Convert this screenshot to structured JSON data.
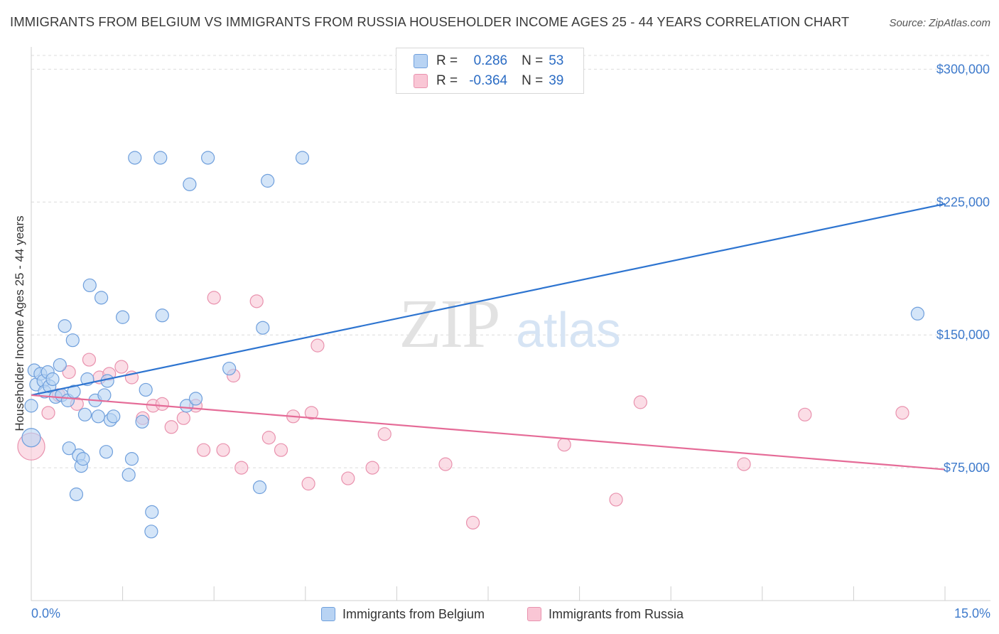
{
  "title": "IMMIGRANTS FROM BELGIUM VS IMMIGRANTS FROM RUSSIA HOUSEHOLDER INCOME AGES 25 - 44 YEARS CORRELATION CHART",
  "source": "Source: ZipAtlas.com",
  "watermark": {
    "zip": "ZIP",
    "atlas": "atlas"
  },
  "legend": {
    "r_label": "R =",
    "n_label": "N =",
    "belgium": {
      "r": "0.286",
      "n": "53"
    },
    "russia": {
      "r": "-0.364",
      "n": "39"
    }
  },
  "colors": {
    "belgium_fill": "#b8d3f3",
    "belgium_stroke": "#6f9fdc",
    "belgium_line": "#2d74d0",
    "russia_fill": "#f9c6d5",
    "russia_stroke": "#e992ae",
    "russia_line": "#e56b97",
    "tick_label": "#3f7bcc",
    "grid": "#dcdcdc"
  },
  "chart_data": {
    "type": "scatter",
    "title": "IMMIGRANTS FROM BELGIUM VS IMMIGRANTS FROM RUSSIA HOUSEHOLDER INCOME AGES 25 - 44 YEARS CORRELATION CHART",
    "xlabel": "",
    "ylabel": "Householder Income Ages 25 - 44 years",
    "xlim": [
      0,
      15
    ],
    "ylim": [
      0,
      315000
    ],
    "x_tick_labels": [
      "0.0%",
      "15.0%"
    ],
    "y_ticks": [
      75000,
      150000,
      225000,
      300000
    ],
    "y_tick_labels": [
      "$75,000",
      "$150,000",
      "$225,000",
      "$300,000"
    ],
    "grid": "horizontal dashed",
    "legend_placement": "top-center",
    "series": [
      {
        "name": "Immigrants from Belgium",
        "r": 0.286,
        "n": 53,
        "trend": {
          "x": [
            0,
            15
          ],
          "y": [
            116000,
            224000
          ]
        },
        "points": [
          [
            0.0,
            110000
          ],
          [
            0.05,
            130000
          ],
          [
            0.08,
            122000
          ],
          [
            0.15,
            128000
          ],
          [
            0.2,
            124000
          ],
          [
            0.22,
            118000
          ],
          [
            0.27,
            129000
          ],
          [
            0.3,
            121000
          ],
          [
            0.4,
            115000
          ],
          [
            0.47,
            133000
          ],
          [
            0.5,
            116000
          ],
          [
            0.55,
            155000
          ],
          [
            0.6,
            113000
          ],
          [
            0.62,
            86000
          ],
          [
            0.68,
            147000
          ],
          [
            0.7,
            118000
          ],
          [
            0.74,
            60000
          ],
          [
            0.78,
            82000
          ],
          [
            0.82,
            76000
          ],
          [
            0.85,
            80000
          ],
          [
            0.88,
            105000
          ],
          [
            0.92,
            125000
          ],
          [
            0.96,
            178000
          ],
          [
            1.05,
            113000
          ],
          [
            1.1,
            104000
          ],
          [
            1.15,
            171000
          ],
          [
            1.2,
            116000
          ],
          [
            1.23,
            84000
          ],
          [
            1.25,
            124000
          ],
          [
            1.3,
            102000
          ],
          [
            1.35,
            104000
          ],
          [
            1.5,
            160000
          ],
          [
            1.6,
            71000
          ],
          [
            1.65,
            80000
          ],
          [
            1.7,
            250000
          ],
          [
            1.82,
            101000
          ],
          [
            1.88,
            119000
          ],
          [
            1.97,
            39000
          ],
          [
            1.98,
            50000
          ],
          [
            2.12,
            250000
          ],
          [
            2.15,
            161000
          ],
          [
            2.55,
            110000
          ],
          [
            2.6,
            235000
          ],
          [
            2.7,
            114000
          ],
          [
            2.9,
            250000
          ],
          [
            3.25,
            131000
          ],
          [
            3.8,
            154000
          ],
          [
            3.75,
            64000
          ],
          [
            3.88,
            237000
          ],
          [
            4.45,
            250000
          ],
          [
            14.55,
            162000
          ],
          [
            0.0,
            92000
          ],
          [
            0.35,
            125000
          ]
        ]
      },
      {
        "name": "Immigrants from Russia",
        "r": -0.364,
        "n": 39,
        "trend": {
          "x": [
            0,
            15
          ],
          "y": [
            116000,
            74000
          ]
        },
        "points": [
          [
            0.0,
            87000
          ],
          [
            0.28,
            106000
          ],
          [
            0.45,
            116000
          ],
          [
            0.62,
            129000
          ],
          [
            0.75,
            111000
          ],
          [
            0.95,
            136000
          ],
          [
            1.12,
            126000
          ],
          [
            1.28,
            128000
          ],
          [
            1.48,
            132000
          ],
          [
            1.65,
            126000
          ],
          [
            1.83,
            103000
          ],
          [
            2.0,
            110000
          ],
          [
            2.15,
            111000
          ],
          [
            2.3,
            98000
          ],
          [
            2.5,
            103000
          ],
          [
            2.7,
            110000
          ],
          [
            2.83,
            85000
          ],
          [
            3.0,
            171000
          ],
          [
            3.15,
            85000
          ],
          [
            3.32,
            127000
          ],
          [
            3.45,
            75000
          ],
          [
            3.7,
            169000
          ],
          [
            3.9,
            92000
          ],
          [
            4.1,
            85000
          ],
          [
            4.3,
            104000
          ],
          [
            4.6,
            106000
          ],
          [
            4.55,
            66000
          ],
          [
            4.7,
            144000
          ],
          [
            5.2,
            69000
          ],
          [
            5.6,
            75000
          ],
          [
            5.8,
            94000
          ],
          [
            6.8,
            77000
          ],
          [
            7.25,
            44000
          ],
          [
            8.75,
            88000
          ],
          [
            9.6,
            57000
          ],
          [
            10.0,
            112000
          ],
          [
            11.7,
            77000
          ],
          [
            12.7,
            105000
          ],
          [
            14.3,
            106000
          ]
        ]
      }
    ]
  },
  "bottom_legend": {
    "belgium": "Immigrants from Belgium",
    "russia": "Immigrants from Russia"
  }
}
